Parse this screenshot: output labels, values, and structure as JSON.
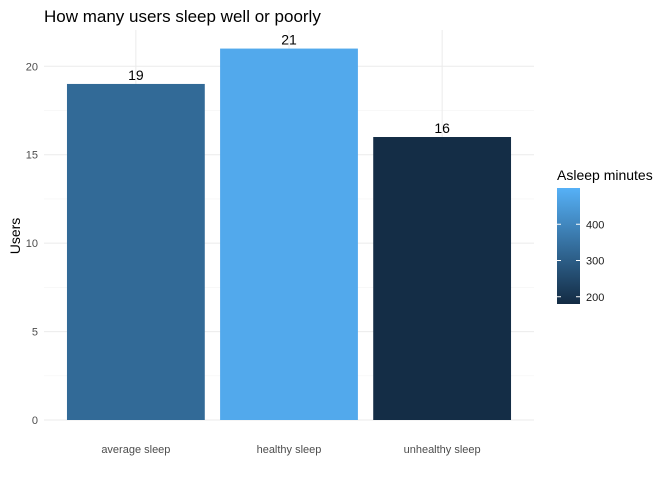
{
  "chart_data": {
    "type": "bar",
    "title": "How many users sleep well or poorly",
    "xlabel": "",
    "ylabel": "Users",
    "categories": [
      "average sleep",
      "healthy sleep",
      "unhealthy sleep"
    ],
    "values": [
      19,
      21,
      16
    ],
    "data_labels": [
      "19",
      "21",
      "16"
    ],
    "fill_values": [
      330,
      480,
      185
    ],
    "ylim": [
      0,
      22.05
    ],
    "yticks": [
      0,
      5,
      10,
      15,
      20
    ],
    "grid": true,
    "legend": {
      "title": "Asleep minutes",
      "placement": "right",
      "range": [
        180,
        500
      ],
      "ticks": [
        200,
        300,
        400
      ],
      "color_low": "#132B43",
      "color_high": "#56B1F7"
    }
  }
}
